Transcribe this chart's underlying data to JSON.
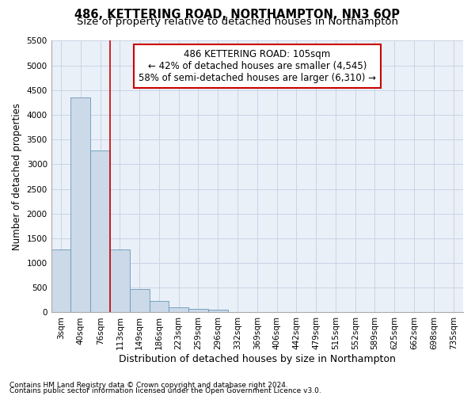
{
  "title1": "486, KETTERING ROAD, NORTHAMPTON, NN3 6QP",
  "title2": "Size of property relative to detached houses in Northampton",
  "xlabel": "Distribution of detached houses by size in Northampton",
  "ylabel": "Number of detached properties",
  "bar_labels": [
    "3sqm",
    "40sqm",
    "76sqm",
    "113sqm",
    "149sqm",
    "186sqm",
    "223sqm",
    "259sqm",
    "296sqm",
    "332sqm",
    "369sqm",
    "406sqm",
    "442sqm",
    "479sqm",
    "515sqm",
    "552sqm",
    "589sqm",
    "625sqm",
    "662sqm",
    "698sqm",
    "735sqm"
  ],
  "bar_values": [
    1275,
    4350,
    3275,
    1275,
    475,
    225,
    100,
    75,
    55,
    0,
    0,
    0,
    0,
    0,
    0,
    0,
    0,
    0,
    0,
    0,
    0
  ],
  "bar_color": "#ccd9e8",
  "bar_edge_color": "#6699bb",
  "grid_color": "#c8d4e4",
  "bg_color": "#eaf0f8",
  "vline_x": 2.5,
  "vline_color": "#cc0000",
  "annotation_line1": "486 KETTERING ROAD: 105sqm",
  "annotation_line2": "← 42% of detached houses are smaller (4,545)",
  "annotation_line3": "58% of semi-detached houses are larger (6,310) →",
  "annotation_box_color": "#ffffff",
  "annotation_box_edge": "#cc0000",
  "footnote1": "Contains HM Land Registry data © Crown copyright and database right 2024.",
  "footnote2": "Contains public sector information licensed under the Open Government Licence v3.0.",
  "ylim": [
    0,
    5500
  ],
  "yticks": [
    0,
    500,
    1000,
    1500,
    2000,
    2500,
    3000,
    3500,
    4000,
    4500,
    5000,
    5500
  ],
  "title1_fontsize": 10.5,
  "title2_fontsize": 9.5,
  "xlabel_fontsize": 9,
  "ylabel_fontsize": 8.5,
  "tick_fontsize": 7.5,
  "annot_fontsize": 8.5,
  "footnote_fontsize": 6.5
}
